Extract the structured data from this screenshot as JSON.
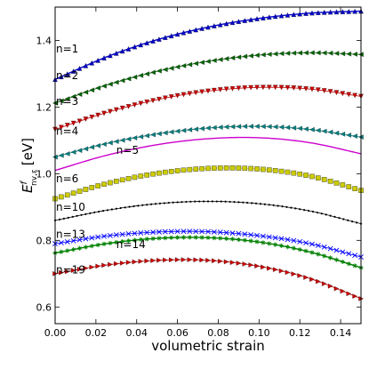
{
  "chart_data": {
    "type": "line",
    "xlabel": "volumetric strain",
    "ylabel": {
      "base": "E",
      "sup": "f",
      "sub": "nv,ε",
      "unit": "[eV]"
    },
    "xlim": [
      0.0,
      0.15
    ],
    "ylim": [
      0.55,
      1.5
    ],
    "xticks": [
      "0.00",
      "0.02",
      "0.04",
      "0.06",
      "0.08",
      "0.10",
      "0.12",
      "0.14"
    ],
    "yticks": [
      "0.6",
      "0.8",
      "1.0",
      "1.2",
      "1.4"
    ],
    "grid": false,
    "legend": "none",
    "series": [
      {
        "label": "n=1",
        "color": "#0000cc",
        "marker": "triangle-up",
        "x": [
          0.0,
          0.025,
          0.05,
          0.075,
          0.1,
          0.125,
          0.15
        ],
        "y": [
          1.283,
          1.35,
          1.402,
          1.44,
          1.466,
          1.482,
          1.488
        ]
      },
      {
        "label": "n=2",
        "color": "#006600",
        "marker": "triangle-left",
        "x": [
          0.0,
          0.025,
          0.05,
          0.075,
          0.1,
          0.125,
          0.15
        ],
        "y": [
          1.212,
          1.265,
          1.307,
          1.337,
          1.356,
          1.363,
          1.358
        ]
      },
      {
        "label": "n=3",
        "color": "#cc0000",
        "marker": "triangle-down",
        "x": [
          0.0,
          0.025,
          0.05,
          0.075,
          0.1,
          0.125,
          0.15
        ],
        "y": [
          1.133,
          1.183,
          1.222,
          1.248,
          1.259,
          1.254,
          1.232
        ]
      },
      {
        "label": "n=4",
        "color": "#008080",
        "marker": "triangle-left",
        "x": [
          0.0,
          0.025,
          0.05,
          0.075,
          0.1,
          0.125,
          0.15
        ],
        "y": [
          1.05,
          1.09,
          1.119,
          1.137,
          1.142,
          1.133,
          1.11
        ]
      },
      {
        "label": "n=5",
        "color": "#cc00cc",
        "marker": "line",
        "x": [
          0.0,
          0.025,
          0.05,
          0.075,
          0.1,
          0.125,
          0.15
        ],
        "y": [
          1.01,
          1.055,
          1.087,
          1.105,
          1.108,
          1.093,
          1.06
        ]
      },
      {
        "label": "n=6",
        "color": "#cccc00",
        "marker": "square",
        "x": [
          0.0,
          0.025,
          0.05,
          0.075,
          0.1,
          0.125,
          0.15
        ],
        "y": [
          0.925,
          0.97,
          1.001,
          1.016,
          1.014,
          0.993,
          0.95
        ]
      },
      {
        "label": "n=10",
        "color": "#000000",
        "marker": "dot",
        "x": [
          0.0,
          0.025,
          0.05,
          0.075,
          0.1,
          0.125,
          0.15
        ],
        "y": [
          0.86,
          0.89,
          0.91,
          0.917,
          0.91,
          0.888,
          0.85
        ]
      },
      {
        "label": "n=13",
        "color": "#0000ff",
        "marker": "x",
        "x": [
          0.0,
          0.025,
          0.05,
          0.075,
          0.1,
          0.125,
          0.15
        ],
        "y": [
          0.79,
          0.813,
          0.825,
          0.826,
          0.814,
          0.79,
          0.75
        ]
      },
      {
        "label": "n=14",
        "color": "#008000",
        "marker": "star",
        "x": [
          0.0,
          0.025,
          0.05,
          0.075,
          0.1,
          0.125,
          0.15
        ],
        "y": [
          0.762,
          0.79,
          0.806,
          0.808,
          0.795,
          0.765,
          0.718
        ]
      },
      {
        "label": "n=19",
        "color": "#cc0000",
        "marker": "triangle-right",
        "x": [
          0.0,
          0.025,
          0.05,
          0.075,
          0.1,
          0.125,
          0.15
        ],
        "y": [
          0.7,
          0.726,
          0.74,
          0.74,
          0.722,
          0.685,
          0.625
        ]
      }
    ],
    "annotations": [
      {
        "text": "n=1",
        "x": 0.0,
        "y": 1.375
      },
      {
        "text": "n=2",
        "x": 0.0,
        "y": 1.295
      },
      {
        "text": "n=3",
        "x": 0.0,
        "y": 1.217
      },
      {
        "text": "n=4",
        "x": 0.0,
        "y": 1.128
      },
      {
        "text": "n=5",
        "x": 0.03,
        "y": 1.07
      },
      {
        "text": "n=6",
        "x": 0.0,
        "y": 0.985
      },
      {
        "text": "n=10",
        "x": 0.0,
        "y": 0.9
      },
      {
        "text": "n=13",
        "x": 0.0,
        "y": 0.818
      },
      {
        "text": "n=14",
        "x": 0.03,
        "y": 0.788
      },
      {
        "text": "n=19",
        "x": 0.0,
        "y": 0.712
      }
    ]
  }
}
